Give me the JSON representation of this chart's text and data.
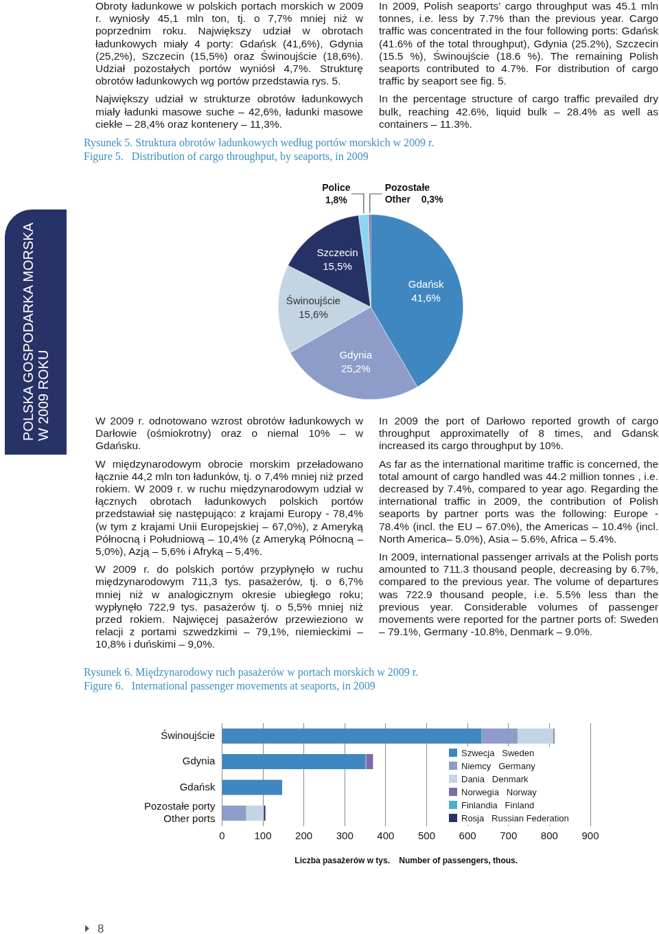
{
  "chart_data": [
    {
      "type": "pie",
      "title": "Rysunek 5. Struktura obrotów ładunkowych według portów morskich w 2009 r.",
      "subtitle": "Figure 5.   Distribution of cargo throughput, by seaports, in 2009",
      "categories": [
        "Gdańsk",
        "Gdynia",
        "Świnoujście",
        "Szczecin",
        "Police",
        "Pozostałe\nOther"
      ],
      "values": [
        41.6,
        25.2,
        15.6,
        15.5,
        1.8,
        0.3
      ],
      "value_labels": [
        "41,6%",
        "25,2%",
        "15,6%",
        "15,5%",
        "1,8%",
        "0,3%"
      ],
      "colors": [
        "#3f87c0",
        "#8e9cc9",
        "#c3d4e3",
        "#263266",
        "#8fd3f2",
        "#8e3b6e"
      ],
      "annotations": [
        "Obroty ładunkowe w polskich portach morskich w 2009 r. wyniosły 45,1 mln ton, tj. o 7,7% mniej niż w poprzednim roku. Największy udział w obrotach ładunkowych miały 4 porty: Gdańsk (41,6%), Gdynia (25,2%), Szczecin (15,5%) oraz Świnoujście (18,6%). Udział pozostałych portów wyniósł 4,7%. Strukturę obrotów ładunkowych wg portów przedstawia rys. 5.",
        "Największy udział w strukturze obrotów ładunkowych miały ładunki masowe suche – 42,6%, ładunki masowe ciekłe – 28,4% oraz kontenery – 11,3%.",
        "In 2009, Polish seaports’ cargo throughput was 45.1 mln tonnes, i.e. less by 7.7% than the previous year. Cargo traffic was concentrated in the four following ports: Gdańsk (41.6% of the total throughput), Gdynia (25.2%), Szczecin (15.5 %), Świnoujście (18.6 %). The remaining Polish seaports contributed to 4.7%. For distribution of cargo traffic by seaport see fig. 5.",
        "In the percentage structure of cargo traffic prevailed dry bulk, reaching 42.6%, liquid bulk – 28.4% as well as containers – 11.3%.",
        "POLSKA GOSPODARKA MORSKA\nW 2009 ROKU",
        "8"
      ]
    },
    {
      "type": "bar",
      "orientation": "horizontal",
      "stacked": true,
      "title": "Rysunek 6. Międzynarodowy ruch pasażerów w portach morskich w 2009 r.",
      "subtitle": "Figure 6.   International passenger movements at seaports, in 2009",
      "xlabel": "Liczba pasażerów w tys.    Number of passengers, thous.",
      "categories": [
        "Świnoujście",
        "Gdynia",
        "Gdańsk",
        "Pozostałe porty\nOther ports"
      ],
      "series": [
        {
          "name": "Szwecja   Sweden",
          "color": "#3f87c0",
          "values": [
            634,
            350,
            147,
            null
          ]
        },
        {
          "name": "Niemcy   Germany",
          "color": "#8e9cc9",
          "values": [
            88,
            3,
            null,
            59
          ]
        },
        {
          "name": "Dania   Denmark",
          "color": "#c3d4e3",
          "values": [
            88,
            null,
            null,
            43
          ]
        },
        {
          "name": "Norwegia   Norway",
          "color": "#7d6aa8",
          "values": [
            null,
            16,
            null,
            null
          ]
        },
        {
          "name": "Finlandia   Finland",
          "color": "#4bb0c4",
          "values": [
            null,
            null,
            null,
            null
          ]
        },
        {
          "name": "Rosja   Russian Federation",
          "color": "#263266",
          "values": [
            2,
            null,
            null,
            4
          ]
        }
      ],
      "xlim": [
        0,
        900
      ],
      "xticks": [
        0,
        100,
        200,
        300,
        400,
        500,
        600,
        700,
        800,
        900
      ],
      "grid": "x",
      "legend": "bottom right",
      "annotations": [
        "W 2009 r. odnotowano wzrost obrotów ładunkowych w Darłowie (ośmiokrotny) oraz o niemal 10% – w Gdańsku.",
        "W międzynarodowym obrocie morskim przeładowano łącznie 44,2 mln ton ładunków, tj. o 7,4% mniej niż przed rokiem. W 2009 r. w ruchu międzynarodowym udział w łącznych obrotach ładunkowych polskich portów przedstawiał się następująco: z krajami Europy - 78,4% (w tym z krajami Unii Europejskiej – 67,0%), z Ameryką Północną i Południową – 10,4% (z Ameryką Północną – 5,0%), Azją – 5,6% i Afryką – 5,4%.",
        "W 2009 r. do polskich portów przypłynęło w ruchu międzynarodowym 711,3 tys. pasażerów, tj. o 6,7% mniej niż w analogicznym okresie ubiegłego roku; wypłynęło 722,9 tys. pasażerów tj. o 5,5% mniej niż przed rokiem. Najwięcej pasażerów przewieziono w relacji z portami szwedzkimi – 79,1%, niemieckimi – 10,8% i duńskimi – 9,0%.",
        "In 2009 the port of Darłowo reported growth of cargo throughput approximatelly of 8 times, and Gdansk increased its cargo throughput by 10%.",
        "As far as the international maritime traffic is concerned, the total amount of cargo handled was 44.2 million tonnes , i.e. decreased by 7.4%, compared to year ago. Regarding the international traffic in 2009, the contribution of Polish seaports by partner ports was the following: Europe - 78.4% (incl. the EU – 67.0%), the Americas – 10.4% (incl. North America– 5.0%), Asia  – 5.6%, Africa – 5.4%.",
        "In 2009, international passenger arrivals at the Polish ports amounted to 711.3 thousand people, decreasing by 6.7%, compared to the previous year. The volume of departures was 722.9 thousand people, i.e. 5.5% less than the previous year. Considerable volumes of passenger movements were reported for the partner ports of: Sweden – 79.1%, Germany -10.8%, Denmark – 9.0%."
      ]
    }
  ]
}
